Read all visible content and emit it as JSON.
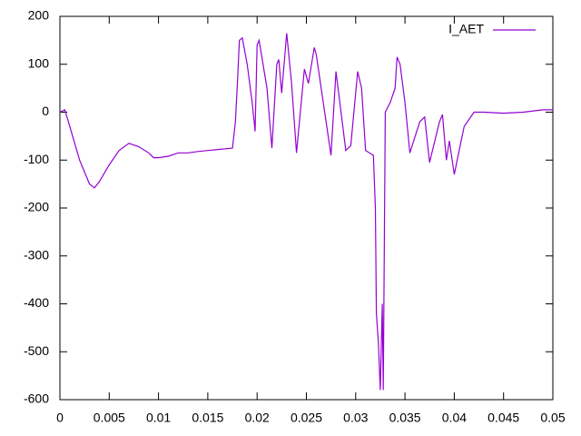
{
  "chart_data": {
    "type": "line",
    "x": [
      0,
      0.0005,
      0.001,
      0.002,
      0.003,
      0.0035,
      0.004,
      0.005,
      0.006,
      0.007,
      0.008,
      0.009,
      0.0095,
      0.01,
      0.011,
      0.012,
      0.013,
      0.014,
      0.015,
      0.016,
      0.0175,
      0.0178,
      0.018,
      0.0182,
      0.0185,
      0.019,
      0.0195,
      0.0198,
      0.02,
      0.0202,
      0.021,
      0.0215,
      0.022,
      0.0222,
      0.0225,
      0.023,
      0.0235,
      0.024,
      0.0248,
      0.0252,
      0.0258,
      0.026,
      0.0275,
      0.028,
      0.029,
      0.0295,
      0.0302,
      0.0306,
      0.031,
      0.0318,
      0.032,
      0.0321,
      0.0323,
      0.0325,
      0.0327,
      0.0328,
      0.033,
      0.0335,
      0.034,
      0.0342,
      0.0345,
      0.035,
      0.0355,
      0.0365,
      0.037,
      0.0375,
      0.0385,
      0.0388,
      0.0392,
      0.0395,
      0.04,
      0.0405,
      0.041,
      0.042,
      0.043,
      0.045,
      0.047,
      0.049,
      0.05
    ],
    "series": [
      {
        "name": "I_AET",
        "color": "#9400d3",
        "values": [
          0,
          5,
          -30,
          -100,
          -150,
          -158,
          -145,
          -110,
          -80,
          -65,
          -72,
          -85,
          -95,
          -95,
          -92,
          -85,
          -85,
          -82,
          -80,
          -78,
          -75,
          -20,
          60,
          150,
          155,
          100,
          20,
          -40,
          140,
          150,
          50,
          -75,
          100,
          110,
          40,
          165,
          60,
          -85,
          90,
          60,
          135,
          120,
          -90,
          85,
          -80,
          -70,
          85,
          50,
          -80,
          -90,
          -200,
          -420,
          -480,
          -580,
          -400,
          -580,
          0,
          20,
          50,
          115,
          100,
          20,
          -85,
          -20,
          -10,
          -105,
          -20,
          -5,
          -100,
          -60,
          -130,
          -80,
          -30,
          0,
          0,
          -2,
          0,
          5,
          5
        ]
      }
    ],
    "xlim": [
      0,
      0.05
    ],
    "xticks": [
      0,
      0.005,
      0.01,
      0.015,
      0.02,
      0.025,
      0.03,
      0.035,
      0.04,
      0.045,
      0.05
    ],
    "ylim": [
      -600,
      200
    ],
    "yticks": [
      -600,
      -500,
      -400,
      -300,
      -200,
      -100,
      0,
      100,
      200
    ],
    "legend": "top-right"
  }
}
